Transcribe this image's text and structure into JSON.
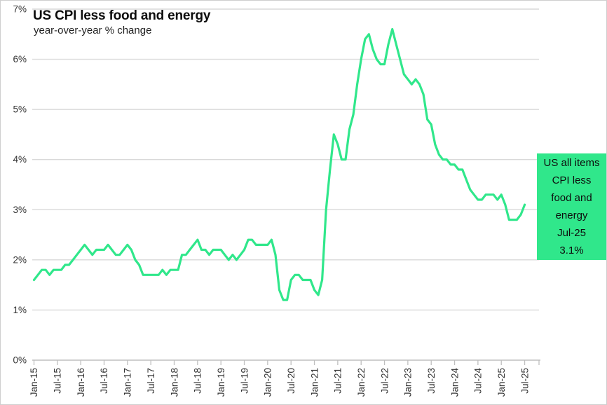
{
  "chart_data": {
    "type": "line",
    "title": "US CPI less food and energy",
    "subtitle": "year-over-year % change",
    "x_start": "Jan-2015",
    "x_end": "Jul-2025",
    "frequency": "monthly",
    "xtick_labels": [
      "Jan-15",
      "Jul-15",
      "Jan-16",
      "Jul-16",
      "Jan-17",
      "Jul-17",
      "Jan-18",
      "Jul-18",
      "Jan-19",
      "Jul-19",
      "Jan-20",
      "Jul-20",
      "Jan-21",
      "Jul-21",
      "Jan-22",
      "Jul-22",
      "Jan-23",
      "Jul-23",
      "Jan-24",
      "Jul-24",
      "Jan-25",
      "Jul-25"
    ],
    "ytick_labels": [
      "0%",
      "1%",
      "2%",
      "3%",
      "4%",
      "5%",
      "6%",
      "7%"
    ],
    "ylim": [
      0,
      7
    ],
    "grid": "horizontal",
    "legend_position": "none",
    "series": [
      {
        "name": "US all items CPI less food and energy",
        "values": [
          1.6,
          1.7,
          1.8,
          1.8,
          1.7,
          1.8,
          1.8,
          1.8,
          1.9,
          1.9,
          2.0,
          2.1,
          2.2,
          2.3,
          2.2,
          2.1,
          2.2,
          2.2,
          2.2,
          2.3,
          2.2,
          2.1,
          2.1,
          2.2,
          2.3,
          2.2,
          2.0,
          1.9,
          1.7,
          1.7,
          1.7,
          1.7,
          1.7,
          1.8,
          1.7,
          1.8,
          1.8,
          1.8,
          2.1,
          2.1,
          2.2,
          2.3,
          2.4,
          2.2,
          2.2,
          2.1,
          2.2,
          2.2,
          2.2,
          2.1,
          2.0,
          2.1,
          2.0,
          2.1,
          2.2,
          2.4,
          2.4,
          2.3,
          2.3,
          2.3,
          2.3,
          2.4,
          2.1,
          1.4,
          1.2,
          1.2,
          1.6,
          1.7,
          1.7,
          1.6,
          1.6,
          1.6,
          1.4,
          1.3,
          1.6,
          3.0,
          3.8,
          4.5,
          4.3,
          4.0,
          4.0,
          4.6,
          4.9,
          5.5,
          6.0,
          6.4,
          6.5,
          6.2,
          6.0,
          5.9,
          5.9,
          6.3,
          6.6,
          6.3,
          6.0,
          5.7,
          5.6,
          5.5,
          5.6,
          5.5,
          5.3,
          4.8,
          4.7,
          4.3,
          4.1,
          4.0,
          4.0,
          3.9,
          3.9,
          3.8,
          3.8,
          3.6,
          3.4,
          3.3,
          3.2,
          3.2,
          3.3,
          3.3,
          3.3,
          3.2,
          3.3,
          3.1,
          2.8,
          2.8,
          2.8,
          2.9,
          3.1
        ]
      }
    ],
    "last_point": {
      "label": "Jul-25",
      "value_text": "3.1%"
    }
  },
  "callout": {
    "lines": [
      "US all items",
      "CPI less",
      "food and",
      "energy",
      "Jul-25",
      "3.1%"
    ]
  },
  "colors": {
    "line": "#30e78b",
    "callout_bg": "#30e78b",
    "grid": "#d9d9d9",
    "axis": "#bfbfbf",
    "tick_text": "#333333",
    "background": "#ffffff"
  }
}
